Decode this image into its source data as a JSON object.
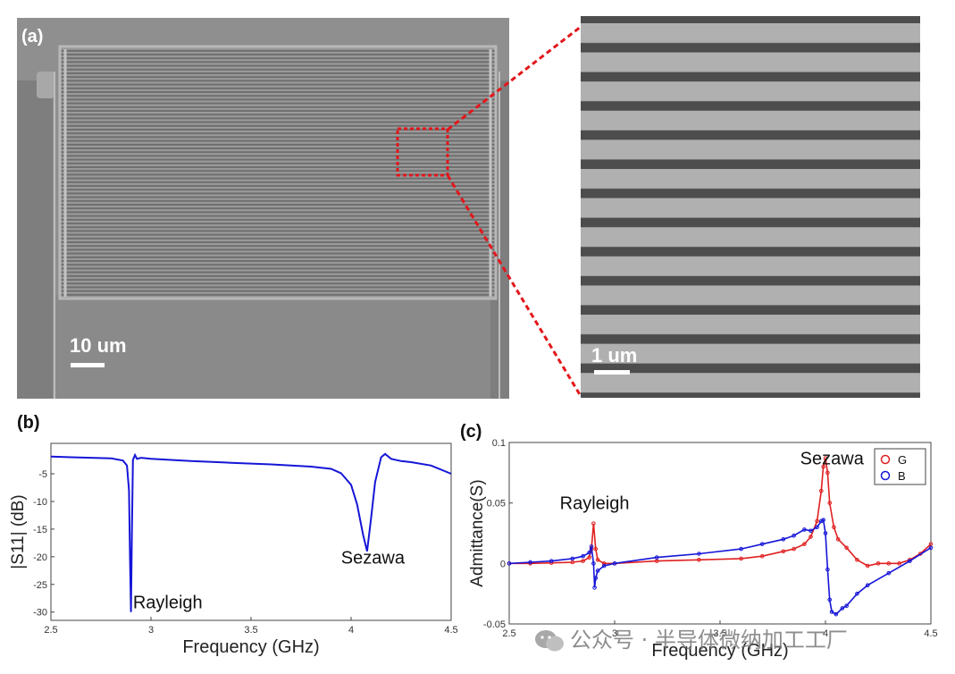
{
  "figure": {
    "panel_a_label": "(a)",
    "panel_b_label": "(b)",
    "panel_c_label": "(c)",
    "sem_left_scale": "10 um",
    "sem_right_scale": "1 um",
    "watermark_text": "公众号 · 半导体微纳加工工厂",
    "colors": {
      "blue": "#1515d8",
      "red": "#e02020",
      "zoom_box": "#e3161b",
      "sem_gray": "#8c8c8c"
    }
  },
  "chart_data": [
    {
      "type": "line",
      "panel": "b",
      "title": "",
      "xlabel": "Frequency (GHz)",
      "ylabel": "|S11| (dB)",
      "xlim": [
        2.5,
        4.5
      ],
      "ylim": [
        -31.5,
        0.5
      ],
      "xticks": [
        "2.5",
        "3",
        "3.5",
        "4",
        "4.5"
      ],
      "yticks": [
        "-5",
        "-10",
        "-15",
        "-20",
        "-25",
        "-30"
      ],
      "xtick_values": [
        2.5,
        3,
        3.5,
        4,
        4.5
      ],
      "ytick_values": [
        -5,
        -10,
        -15,
        -20,
        -25,
        -30
      ],
      "annotations": [
        {
          "text": "Rayleigh",
          "x": 2.91,
          "y": -29.3
        },
        {
          "text": "Sezawa",
          "x": 3.95,
          "y": -21.2
        }
      ],
      "series": [
        {
          "color": "#1515d8",
          "x": [
            2.5,
            2.6,
            2.7,
            2.8,
            2.86,
            2.88,
            2.89,
            2.895,
            2.9,
            2.905,
            2.91,
            2.92,
            2.93,
            2.95,
            3.0,
            3.2,
            3.4,
            3.6,
            3.8,
            3.9,
            3.95,
            4.0,
            4.03,
            4.06,
            4.08,
            4.1,
            4.12,
            4.15,
            4.17,
            4.2,
            4.25,
            4.3,
            4.4,
            4.5
          ],
          "y": [
            -1.9,
            -2.0,
            -2.1,
            -2.2,
            -2.6,
            -3.5,
            -8.0,
            -20.0,
            -30.0,
            -15.0,
            -2.5,
            -1.6,
            -2.3,
            -2.1,
            -2.3,
            -2.7,
            -3.0,
            -3.3,
            -3.7,
            -4.1,
            -4.9,
            -7.0,
            -10.5,
            -16.0,
            -19.0,
            -13.0,
            -6.5,
            -2.0,
            -1.4,
            -2.3,
            -2.7,
            -2.9,
            -3.5,
            -5.0
          ]
        }
      ]
    },
    {
      "type": "line",
      "panel": "c",
      "title": "",
      "xlabel": "Frequency (GHz)",
      "ylabel": "Admittance(S)",
      "xlim": [
        2.5,
        4.5
      ],
      "ylim": [
        -0.05,
        0.1
      ],
      "xticks": [
        "2.5",
        "3",
        "3.5",
        "4",
        "4.5"
      ],
      "yticks": [
        "-0.05",
        "0",
        "0.05",
        "0.1"
      ],
      "xtick_values": [
        2.5,
        3,
        3.5,
        4,
        4.5
      ],
      "ytick_values": [
        -0.05,
        0,
        0.05,
        0.1
      ],
      "legend_position": "top-right",
      "annotations": [
        {
          "text": "Rayleigh",
          "x": 2.74,
          "y": 0.045
        },
        {
          "text": "Sezawa",
          "x": 3.88,
          "y": 0.082
        }
      ],
      "series": [
        {
          "name": "G",
          "color": "#e02020",
          "x": [
            2.5,
            2.6,
            2.7,
            2.8,
            2.85,
            2.88,
            2.89,
            2.9,
            2.91,
            2.92,
            2.95,
            3.0,
            3.2,
            3.4,
            3.6,
            3.7,
            3.8,
            3.85,
            3.9,
            3.93,
            3.96,
            3.98,
            3.99,
            4.0,
            4.01,
            4.02,
            4.04,
            4.06,
            4.1,
            4.15,
            4.2,
            4.25,
            4.3,
            4.35,
            4.4,
            4.45,
            4.5
          ],
          "y": [
            0.0,
            0.0,
            0.0005,
            0.001,
            0.002,
            0.005,
            0.012,
            0.033,
            0.012,
            0.003,
            0.0,
            0.0,
            0.002,
            0.003,
            0.004,
            0.006,
            0.01,
            0.012,
            0.016,
            0.022,
            0.035,
            0.06,
            0.08,
            0.087,
            0.075,
            0.05,
            0.03,
            0.02,
            0.013,
            0.003,
            -0.002,
            0.0,
            0.0,
            0.0,
            0.003,
            0.008,
            0.016
          ]
        },
        {
          "name": "B",
          "color": "#1515d8",
          "x": [
            2.5,
            2.6,
            2.7,
            2.8,
            2.85,
            2.88,
            2.89,
            2.9,
            2.905,
            2.91,
            2.92,
            2.95,
            3.0,
            3.2,
            3.4,
            3.6,
            3.7,
            3.8,
            3.85,
            3.9,
            3.93,
            3.96,
            3.98,
            3.99,
            4.0,
            4.01,
            4.02,
            4.03,
            4.05,
            4.08,
            4.1,
            4.15,
            4.2,
            4.3,
            4.4,
            4.5
          ],
          "y": [
            0.0,
            0.001,
            0.002,
            0.004,
            0.006,
            0.009,
            0.014,
            0.0,
            -0.02,
            -0.012,
            -0.006,
            -0.002,
            0.0,
            0.005,
            0.008,
            0.012,
            0.016,
            0.02,
            0.023,
            0.028,
            0.027,
            0.03,
            0.035,
            0.036,
            0.025,
            -0.005,
            -0.03,
            -0.04,
            -0.042,
            -0.037,
            -0.035,
            -0.025,
            -0.018,
            -0.008,
            0.002,
            0.013
          ]
        }
      ]
    }
  ]
}
